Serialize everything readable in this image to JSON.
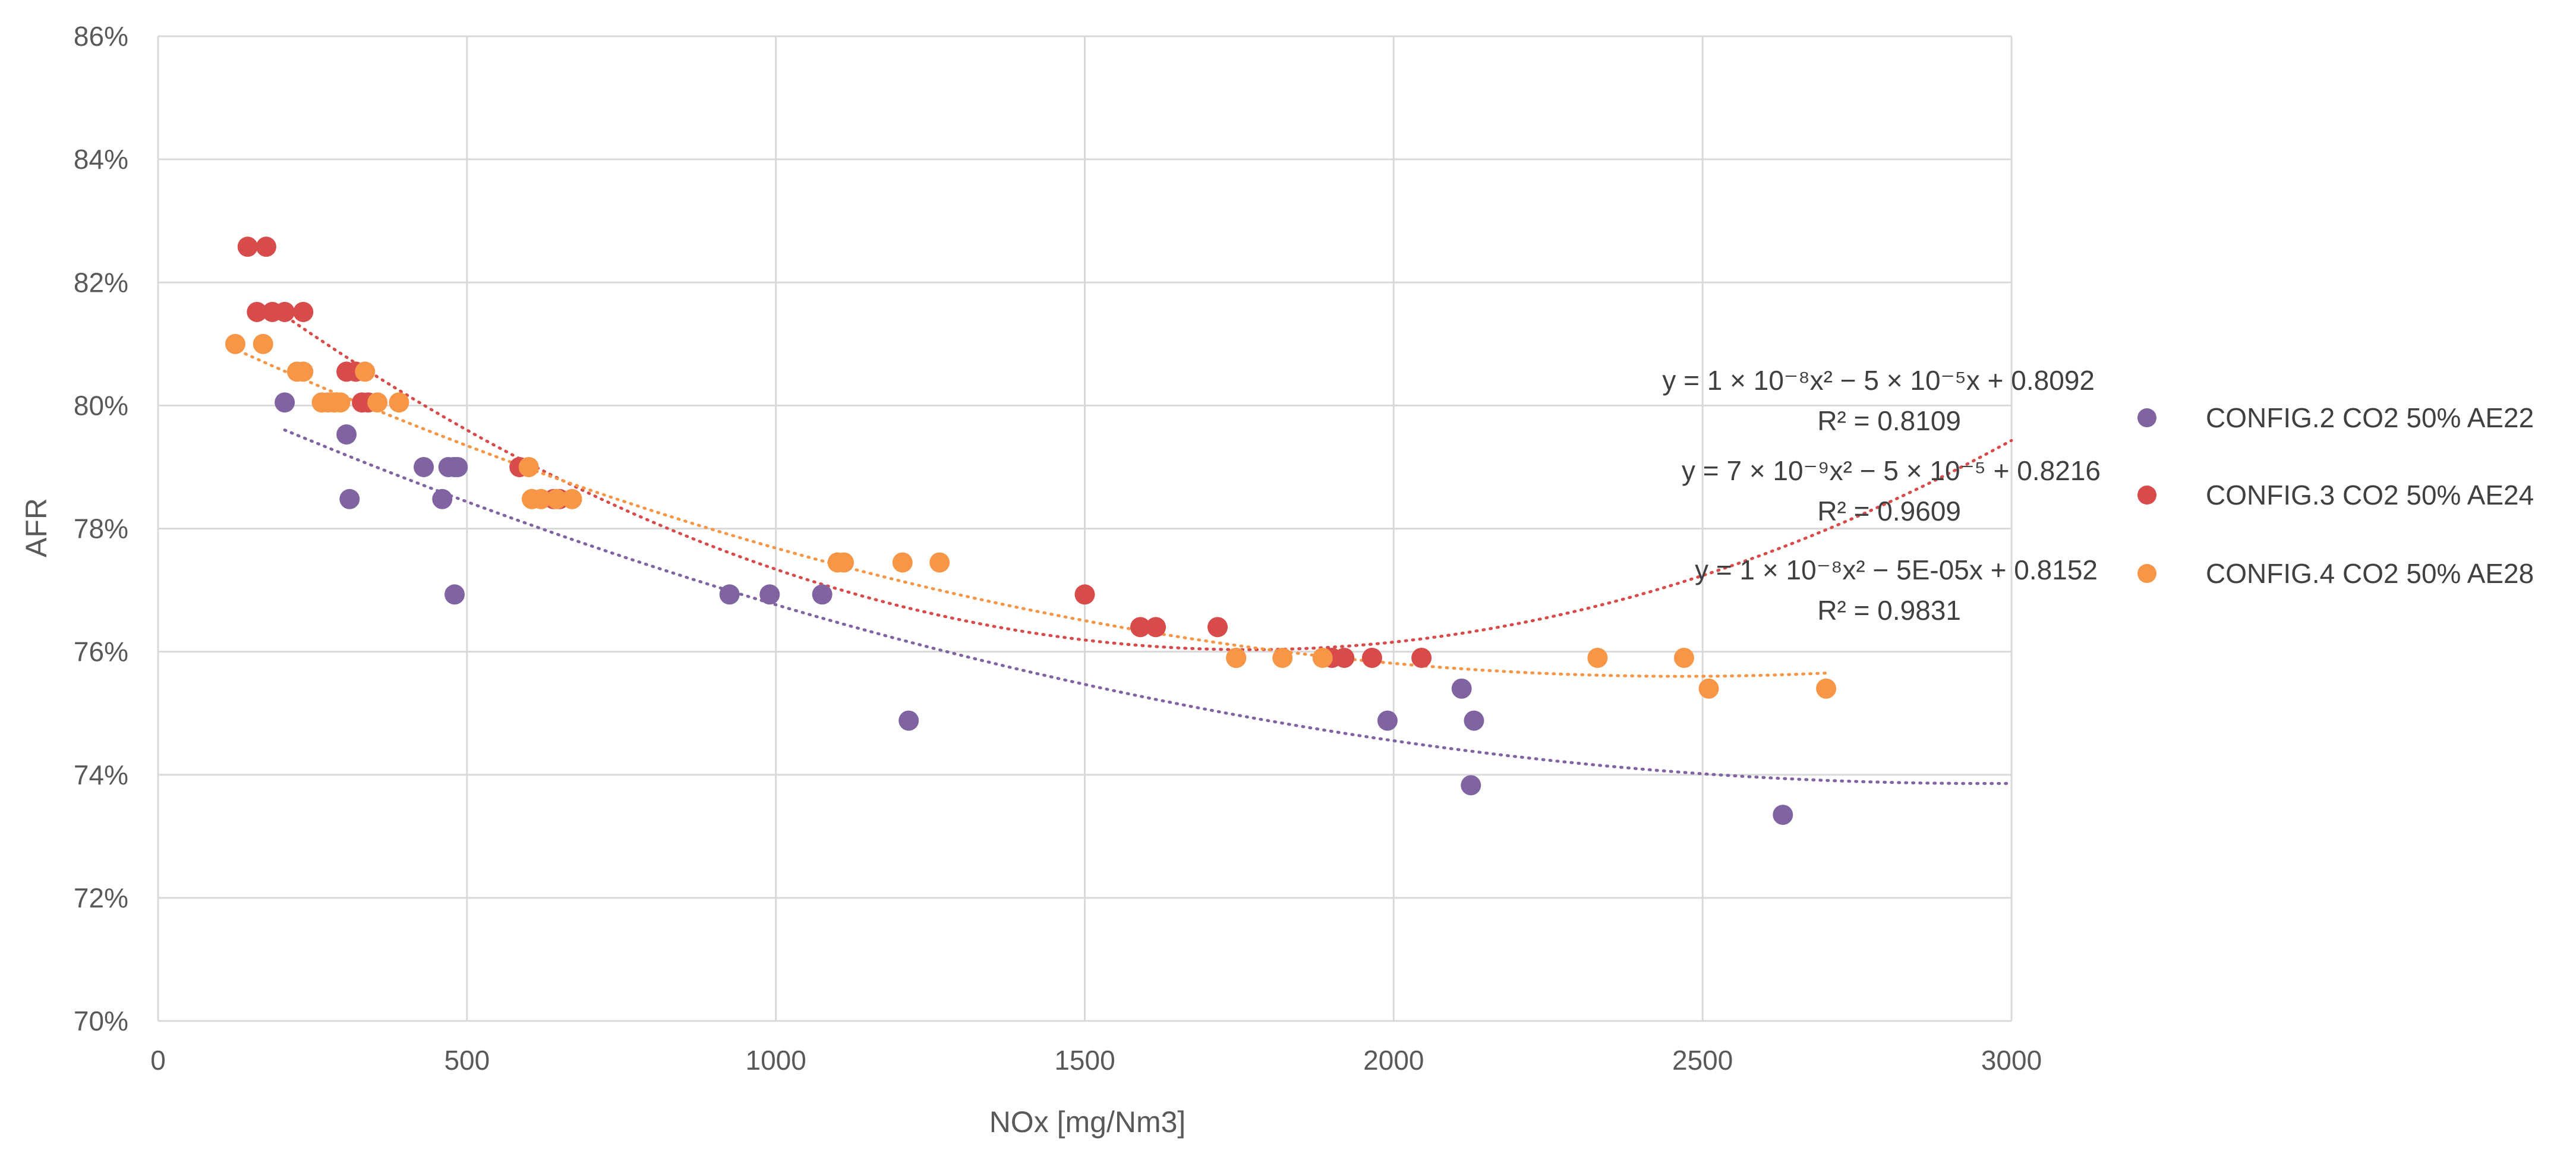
{
  "chart_data": {
    "type": "scatter",
    "title": "",
    "xlabel": "NOx [mg/Nm3]",
    "ylabel": "AFR",
    "xlim": [
      0,
      3000
    ],
    "ylim": [
      0.7,
      0.86
    ],
    "x_ticks": [
      0,
      500,
      1000,
      1500,
      2000,
      2500,
      3000
    ],
    "y_ticks": [
      0.7,
      0.72,
      0.74,
      0.76,
      0.78,
      0.8,
      0.82,
      0.84,
      0.86
    ],
    "x_tick_labels": [
      "0",
      "500",
      "1000",
      "1500",
      "2000",
      "2500",
      "3000"
    ],
    "y_tick_labels": [
      "70%",
      "72%",
      "74%",
      "76%",
      "78%",
      "80%",
      "82%",
      "84%",
      "86%"
    ],
    "grid": true,
    "legend_position": "right",
    "series": [
      {
        "name": "CONFIG.2 CO2 50% AE22",
        "color": "#8064A2",
        "trendline": "poly2",
        "trend_range": [
          205,
          3000
        ],
        "equation": "y = 1 × 10⁻⁸x² − 5 × 10⁻⁵x + 0.8092",
        "r2": "R² = 0.8109",
        "x": [
          205,
          305,
          310,
          430,
          460,
          470,
          480,
          485,
          480,
          925,
          990,
          1075,
          1215,
          1990,
          2110,
          2130,
          2125,
          2630
        ],
        "y": [
          0.8005,
          0.7953,
          0.7848,
          0.79,
          0.7848,
          0.79,
          0.79,
          0.79,
          0.7693,
          0.7693,
          0.7693,
          0.7693,
          0.7488,
          0.7488,
          0.754,
          0.7488,
          0.7383,
          0.7335
        ]
      },
      {
        "name": "CONFIG.3 CO2 50% AE24",
        "color": "#D84B4B",
        "trendline": "poly2",
        "trend_range": [
          180,
          3000
        ],
        "equation": "y = 7 × 10⁻⁹x² − 5 × 10⁻⁵ + 0.8216",
        "r2": "R² = 0.9609",
        "x": [
          145,
          175,
          160,
          185,
          205,
          235,
          305,
          320,
          330,
          340,
          585,
          640,
          650,
          1500,
          1590,
          1615,
          1715,
          1745,
          1900,
          1920,
          1965,
          2045
        ],
        "y": [
          0.8258,
          0.8258,
          0.8152,
          0.8152,
          0.8152,
          0.8152,
          0.8055,
          0.8055,
          0.8005,
          0.8005,
          0.79,
          0.7848,
          0.7848,
          0.7693,
          0.764,
          0.764,
          0.764,
          0.759,
          0.759,
          0.759,
          0.759,
          0.759
        ]
      },
      {
        "name": "CONFIG.4 CO2 50% AE28",
        "color": "#F79646",
        "trendline": "poly2",
        "trend_range": [
          120,
          2700
        ],
        "equation": "y = 1 × 10⁻⁸x² − 5E-05x + 0.8152",
        "r2": "R² = 0.9831",
        "x": [
          125,
          170,
          225,
          235,
          265,
          275,
          285,
          295,
          335,
          355,
          390,
          600,
          605,
          620,
          645,
          670,
          1100,
          1110,
          1205,
          1265,
          1745,
          1820,
          1885,
          2330,
          2470,
          2510,
          2700
        ],
        "y": [
          0.81,
          0.81,
          0.8055,
          0.8055,
          0.8005,
          0.8005,
          0.8005,
          0.8005,
          0.8055,
          0.8005,
          0.8005,
          0.79,
          0.7848,
          0.7848,
          0.7848,
          0.7848,
          0.7745,
          0.7745,
          0.7745,
          0.7745,
          0.759,
          0.759,
          0.759,
          0.759,
          0.759,
          0.754,
          0.754
        ]
      }
    ]
  }
}
